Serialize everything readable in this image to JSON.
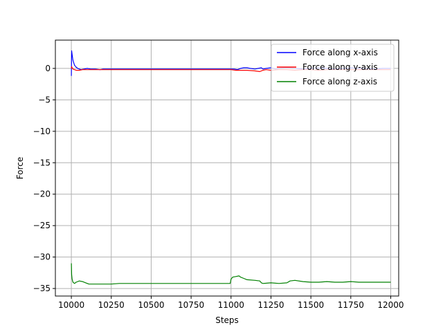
{
  "chart_data": {
    "type": "line",
    "title": "",
    "xlabel": "Steps",
    "ylabel": "Force",
    "xlim": [
      9900,
      12050
    ],
    "ylim": [
      -36.2,
      4.5
    ],
    "xticks": [
      10000,
      10250,
      10500,
      10750,
      11000,
      11250,
      11500,
      11750,
      12000
    ],
    "xtick_labels": [
      "10000",
      "10250",
      "10500",
      "10750",
      "11000",
      "11250",
      "11500",
      "11750",
      "12000"
    ],
    "yticks": [
      0,
      -5,
      -10,
      -15,
      -20,
      -25,
      -30,
      -35
    ],
    "ytick_labels": [
      "0",
      "−5",
      "−10",
      "−15",
      "−20",
      "−25",
      "−30",
      "−35"
    ],
    "grid": true,
    "legend_position": "top-right",
    "series": [
      {
        "name": "Force along x-axis",
        "color": "#0000ff",
        "x": [
          10000,
          10002,
          10005,
          10010,
          10015,
          10020,
          10030,
          10040,
          10050,
          10060,
          10080,
          10100,
          10120,
          10150,
          10180,
          10200,
          10250,
          10300,
          10400,
          10500,
          10600,
          10700,
          10800,
          10900,
          11000,
          11020,
          11040,
          11060,
          11080,
          11100,
          11120,
          11150,
          11170,
          11190,
          11200,
          11220,
          11250,
          11280,
          11300,
          11350,
          11400,
          11450,
          11500,
          11550,
          11600,
          11650,
          11700,
          11750,
          11800,
          11850,
          11900,
          11950,
          12000
        ],
        "y": [
          -1.2,
          2.8,
          2.2,
          1.3,
          0.9,
          0.5,
          0.2,
          0.0,
          -0.1,
          -0.2,
          -0.1,
          0.0,
          -0.1,
          -0.1,
          -0.2,
          -0.1,
          -0.1,
          -0.1,
          -0.1,
          -0.1,
          -0.1,
          -0.1,
          -0.1,
          -0.1,
          -0.1,
          -0.1,
          -0.2,
          0.0,
          0.1,
          0.1,
          0.0,
          -0.1,
          0.0,
          0.1,
          -0.1,
          0.0,
          0.1,
          -0.1,
          0.0,
          0.1,
          0.0,
          -0.1,
          0.0,
          0.1,
          0.0,
          -0.1,
          0.0,
          0.1,
          0.0,
          0.0,
          -0.1,
          0.0,
          0.0
        ]
      },
      {
        "name": "Force along y-axis",
        "color": "#ff0000",
        "x": [
          10000,
          10002,
          10005,
          10010,
          10020,
          10030,
          10050,
          10070,
          10100,
          10150,
          10200,
          10300,
          10400,
          10500,
          10600,
          10700,
          10800,
          10900,
          11000,
          11030,
          11060,
          11100,
          11150,
          11180,
          11200,
          11220,
          11250,
          11300,
          11350,
          11400,
          11450,
          11500,
          11550,
          11600,
          11650,
          11700,
          11750,
          11800,
          11850,
          11900,
          11950,
          12000
        ],
        "y": [
          0.0,
          0.3,
          0.1,
          -0.1,
          -0.2,
          -0.3,
          -0.3,
          -0.2,
          -0.2,
          -0.2,
          -0.2,
          -0.2,
          -0.2,
          -0.2,
          -0.2,
          -0.2,
          -0.2,
          -0.2,
          -0.2,
          -0.3,
          -0.3,
          -0.3,
          -0.4,
          -0.5,
          -0.3,
          -0.2,
          -0.3,
          -0.2,
          -0.2,
          -0.3,
          -0.2,
          -0.2,
          -0.3,
          -0.2,
          -0.2,
          -0.2,
          -0.2,
          -0.2,
          -0.2,
          -0.2,
          -0.2,
          -0.2
        ]
      },
      {
        "name": "Force along z-axis",
        "color": "#008000",
        "x": [
          10000,
          10002,
          10005,
          10010,
          10020,
          10030,
          10050,
          10070,
          10090,
          10110,
          10130,
          10150,
          10200,
          10250,
          10300,
          10350,
          10400,
          10500,
          10600,
          10700,
          10800,
          10900,
          10995,
          11000,
          11010,
          11030,
          11050,
          11060,
          11080,
          11100,
          11150,
          11180,
          11190,
          11200,
          11250,
          11300,
          11350,
          11370,
          11400,
          11450,
          11500,
          11550,
          11600,
          11650,
          11700,
          11750,
          11800,
          11850,
          11900,
          11950,
          12000
        ],
        "y": [
          -31.0,
          -32.8,
          -33.5,
          -34.0,
          -34.2,
          -34.0,
          -33.8,
          -33.9,
          -34.1,
          -34.3,
          -34.3,
          -34.3,
          -34.3,
          -34.3,
          -34.2,
          -34.2,
          -34.2,
          -34.2,
          -34.2,
          -34.2,
          -34.2,
          -34.2,
          -34.2,
          -33.5,
          -33.2,
          -33.1,
          -33.0,
          -33.2,
          -33.4,
          -33.6,
          -33.7,
          -33.8,
          -34.1,
          -34.2,
          -34.1,
          -34.2,
          -34.1,
          -33.8,
          -33.7,
          -33.9,
          -34.0,
          -34.0,
          -33.9,
          -34.0,
          -34.0,
          -33.9,
          -34.0,
          -34.0,
          -34.0,
          -34.0,
          -34.0
        ]
      }
    ]
  }
}
